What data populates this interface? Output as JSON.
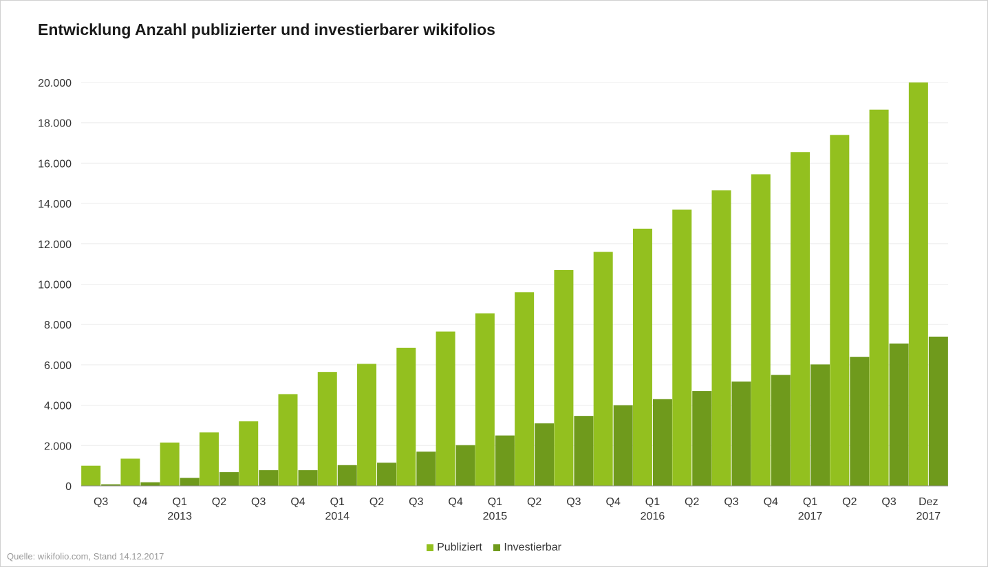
{
  "title": "Entwicklung Anzahl publizierter und investierbarer wikifolios",
  "source": "Quelle: wikifolio.com,  Stand 14.12.2017",
  "colors": {
    "publiziert": "#93c01f",
    "investierbar": "#6f9a1c",
    "grid": "#ececec",
    "axis": "#8c8c8c"
  },
  "chart_data": {
    "type": "bar",
    "categories": [
      [
        "Q3",
        ""
      ],
      [
        "Q4",
        ""
      ],
      [
        "Q1",
        "2013"
      ],
      [
        "Q2",
        ""
      ],
      [
        "Q3",
        ""
      ],
      [
        "Q4",
        ""
      ],
      [
        "Q1",
        "2014"
      ],
      [
        "Q2",
        ""
      ],
      [
        "Q3",
        ""
      ],
      [
        "Q4",
        ""
      ],
      [
        "Q1",
        "2015"
      ],
      [
        "Q2",
        ""
      ],
      [
        "Q3",
        ""
      ],
      [
        "Q4",
        ""
      ],
      [
        "Q1",
        "2016"
      ],
      [
        "Q2",
        ""
      ],
      [
        "Q3",
        ""
      ],
      [
        "Q4",
        ""
      ],
      [
        "Q1",
        "2017"
      ],
      [
        "Q2",
        ""
      ],
      [
        "Q3",
        ""
      ],
      [
        "Dez",
        "2017"
      ]
    ],
    "series": [
      {
        "name": "Publiziert",
        "color": "#93c01f",
        "values": [
          1000,
          1350,
          2150,
          2650,
          3200,
          4550,
          5650,
          6050,
          6850,
          7650,
          8550,
          9600,
          10700,
          11600,
          12750,
          13700,
          14650,
          15450,
          16550,
          17400,
          18650,
          20000
        ]
      },
      {
        "name": "Investierbar",
        "color": "#6f9a1c",
        "values": [
          80,
          180,
          400,
          680,
          780,
          780,
          1030,
          1150,
          1700,
          2020,
          2500,
          3100,
          3470,
          4000,
          4300,
          4700,
          5170,
          5500,
          6020,
          6400,
          7060,
          7400
        ]
      }
    ],
    "yticks": [
      "0",
      "2.000",
      "4.000",
      "6.000",
      "8.000",
      "10.000",
      "12.000",
      "14.000",
      "16.000",
      "18.000",
      "20.000"
    ],
    "ylim": [
      0,
      20000
    ],
    "grid": true,
    "legend_position": "bottom-center",
    "xlabel": "",
    "ylabel": ""
  }
}
